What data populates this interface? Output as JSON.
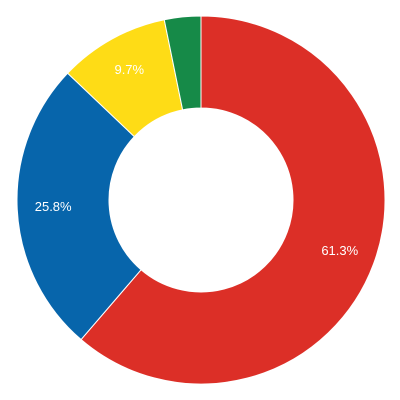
{
  "chart_data": {
    "type": "donut",
    "values": [
      61.3,
      25.8,
      9.7,
      3.2
    ],
    "value_labels": [
      "61.3%",
      "25.8%",
      "9.7%",
      null
    ],
    "colors": [
      "#dc2f27",
      "#0765ab",
      "#fedc16",
      "#168a48"
    ]
  }
}
